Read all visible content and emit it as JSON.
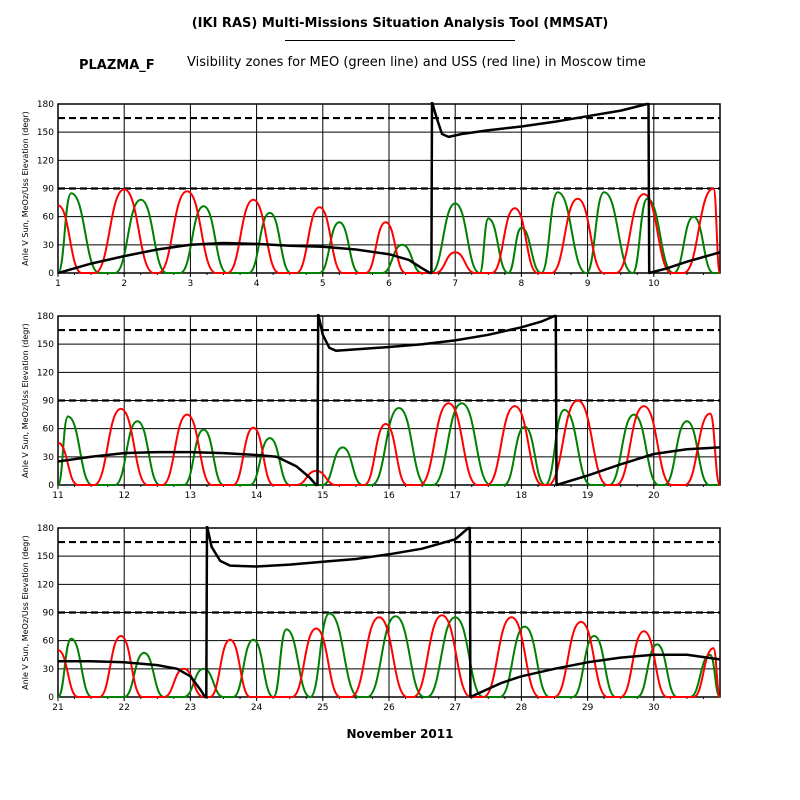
{
  "header": {
    "title": "(IKI RAS) Multi-Missions Situation Analysis Tool (MMSAT)",
    "label": "PLAZMA_F",
    "subtitle": "Visibility zones for MEO (green line) and USS (red line) in Moscow time"
  },
  "footer": {
    "xlabel": "November 2011"
  },
  "chart_data": [
    {
      "type": "line",
      "xlim": [
        1,
        11
      ],
      "ylim": [
        0,
        180
      ],
      "ylabel": "Anle V Sun, MeOz/Uss Elevation (degr)",
      "x_ticks": [
        1,
        2,
        3,
        4,
        5,
        6,
        7,
        8,
        9,
        10
      ],
      "y_ticks": [
        0,
        30,
        60,
        90,
        120,
        150,
        180
      ],
      "reference_lines": [
        90,
        165
      ],
      "grid": true,
      "series": [
        {
          "color": "#000000",
          "points": [
            [
              1,
              0
            ],
            [
              1.5,
              10
            ],
            [
              2,
              18
            ],
            [
              2.5,
              25
            ],
            [
              3,
              30
            ],
            [
              3.5,
              32
            ],
            [
              4,
              31
            ],
            [
              4.5,
              29
            ],
            [
              5,
              28
            ],
            [
              5.5,
              25
            ],
            [
              6,
              20
            ],
            [
              6.3,
              14
            ],
            [
              6.5,
              5
            ],
            [
              6.62,
              0
            ],
            [
              6.64,
              0
            ],
            [
              6.65,
              182
            ],
            [
              6.72,
              165
            ],
            [
              6.8,
              148
            ],
            [
              6.9,
              145
            ],
            [
              7.1,
              148
            ],
            [
              7.5,
              152
            ],
            [
              8,
              156
            ],
            [
              8.5,
              161
            ],
            [
              9,
              167
            ],
            [
              9.5,
              173
            ],
            [
              9.9,
              180
            ],
            [
              9.92,
              180
            ],
            [
              9.93,
              0
            ],
            [
              10.2,
              5
            ],
            [
              10.5,
              12
            ],
            [
              11,
              22
            ]
          ]
        },
        {
          "color": "#008000",
          "peaks": [
            [
              1.2,
              85
            ],
            [
              2.25,
              78
            ],
            [
              3.2,
              71
            ],
            [
              4.2,
              64
            ],
            [
              5.25,
              54
            ],
            [
              6.2,
              30
            ],
            [
              7.0,
              74
            ],
            [
              7.5,
              58
            ],
            [
              8.0,
              48
            ],
            [
              8.55,
              86
            ],
            [
              9.25,
              86
            ],
            [
              9.9,
              79
            ],
            [
              10.6,
              60
            ]
          ]
        },
        {
          "color": "#ff0000",
          "peaks": [
            [
              1.0,
              72
            ],
            [
              2.0,
              89
            ],
            [
              2.95,
              87
            ],
            [
              3.95,
              78
            ],
            [
              4.95,
              70
            ],
            [
              5.95,
              54
            ],
            [
              7.0,
              22
            ],
            [
              7.9,
              69
            ],
            [
              8.85,
              79
            ],
            [
              9.85,
              84
            ],
            [
              10.9,
              90
            ]
          ]
        }
      ]
    },
    {
      "type": "line",
      "xlim": [
        11,
        21
      ],
      "ylim": [
        0,
        180
      ],
      "ylabel": "Anle V Sun, MeOz/Uss Elevation (degr)",
      "x_ticks": [
        11,
        12,
        13,
        14,
        15,
        16,
        17,
        18,
        19,
        20
      ],
      "y_ticks": [
        0,
        30,
        60,
        90,
        120,
        150,
        180
      ],
      "reference_lines": [
        90,
        165
      ],
      "grid": true,
      "series": [
        {
          "color": "#000000",
          "points": [
            [
              11,
              25
            ],
            [
              11.5,
              30
            ],
            [
              12,
              34
            ],
            [
              12.5,
              35
            ],
            [
              13,
              35
            ],
            [
              13.5,
              34
            ],
            [
              14,
              32
            ],
            [
              14.3,
              30
            ],
            [
              14.6,
              20
            ],
            [
              14.8,
              8
            ],
            [
              14.9,
              0
            ],
            [
              14.92,
              0
            ],
            [
              14.93,
              182
            ],
            [
              15.0,
              160
            ],
            [
              15.1,
              146
            ],
            [
              15.2,
              143
            ],
            [
              15.6,
              145
            ],
            [
              16,
              147
            ],
            [
              16.5,
              150
            ],
            [
              17,
              154
            ],
            [
              17.5,
              160
            ],
            [
              18,
              168
            ],
            [
              18.3,
              174
            ],
            [
              18.5,
              180
            ],
            [
              18.52,
              180
            ],
            [
              18.53,
              0
            ],
            [
              19,
              10
            ],
            [
              19.5,
              22
            ],
            [
              20,
              33
            ],
            [
              20.5,
              38
            ],
            [
              21,
              40
            ]
          ]
        },
        {
          "color": "#008000",
          "peaks": [
            [
              11.15,
              73
            ],
            [
              12.2,
              68
            ],
            [
              13.2,
              59
            ],
            [
              14.2,
              50
            ],
            [
              15.3,
              40
            ],
            [
              16.15,
              82
            ],
            [
              17.1,
              87
            ],
            [
              18.05,
              62
            ],
            [
              18.65,
              80
            ],
            [
              19.7,
              75
            ],
            [
              20.5,
              68
            ]
          ]
        },
        {
          "color": "#ff0000",
          "peaks": [
            [
              11.0,
              45
            ],
            [
              11.95,
              81
            ],
            [
              12.95,
              75
            ],
            [
              13.95,
              61
            ],
            [
              14.9,
              15
            ],
            [
              15.95,
              65
            ],
            [
              16.9,
              87
            ],
            [
              17.9,
              84
            ],
            [
              18.85,
              90
            ],
            [
              19.85,
              84
            ],
            [
              20.85,
              76
            ]
          ]
        }
      ]
    },
    {
      "type": "line",
      "xlim": [
        21,
        31
      ],
      "ylim": [
        0,
        180
      ],
      "ylabel": "Anle V Sun, MeOz/Uss Elevation (degr)",
      "x_ticks": [
        21,
        22,
        23,
        24,
        25,
        26,
        27,
        28,
        29,
        30
      ],
      "y_ticks": [
        0,
        30,
        60,
        90,
        120,
        150,
        180
      ],
      "reference_lines": [
        90,
        165
      ],
      "grid": true,
      "series": [
        {
          "color": "#000000",
          "points": [
            [
              21,
              38
            ],
            [
              21.5,
              38
            ],
            [
              22,
              37
            ],
            [
              22.5,
              34
            ],
            [
              22.8,
              30
            ],
            [
              23.0,
              22
            ],
            [
              23.15,
              8
            ],
            [
              23.22,
              0
            ],
            [
              23.24,
              0
            ],
            [
              23.25,
              182
            ],
            [
              23.32,
              160
            ],
            [
              23.45,
              145
            ],
            [
              23.6,
              140
            ],
            [
              24,
              139
            ],
            [
              24.5,
              141
            ],
            [
              25,
              144
            ],
            [
              25.5,
              147
            ],
            [
              26,
              152
            ],
            [
              26.5,
              158
            ],
            [
              27.0,
              168
            ],
            [
              27.2,
              180
            ],
            [
              27.22,
              180
            ],
            [
              27.23,
              0
            ],
            [
              27.7,
              15
            ],
            [
              28,
              22
            ],
            [
              28.5,
              30
            ],
            [
              29,
              37
            ],
            [
              29.5,
              42
            ],
            [
              30,
              45
            ],
            [
              30.5,
              45
            ],
            [
              31,
              40
            ]
          ]
        },
        {
          "color": "#008000",
          "peaks": [
            [
              21.2,
              62
            ],
            [
              22.3,
              47
            ],
            [
              23.2,
              30
            ],
            [
              23.95,
              61
            ],
            [
              24.45,
              72
            ],
            [
              25.1,
              89
            ],
            [
              26.1,
              86
            ],
            [
              27.0,
              85
            ],
            [
              28.05,
              75
            ],
            [
              29.1,
              65
            ],
            [
              30.05,
              56
            ],
            [
              30.85,
              45
            ]
          ]
        },
        {
          "color": "#ff0000",
          "peaks": [
            [
              21.0,
              50
            ],
            [
              21.95,
              65
            ],
            [
              22.9,
              30
            ],
            [
              23.6,
              61
            ],
            [
              24.9,
              73
            ],
            [
              25.85,
              85
            ],
            [
              26.8,
              87
            ],
            [
              27.85,
              85
            ],
            [
              28.9,
              80
            ],
            [
              29.85,
              70
            ],
            [
              30.9,
              52
            ]
          ]
        }
      ]
    }
  ]
}
